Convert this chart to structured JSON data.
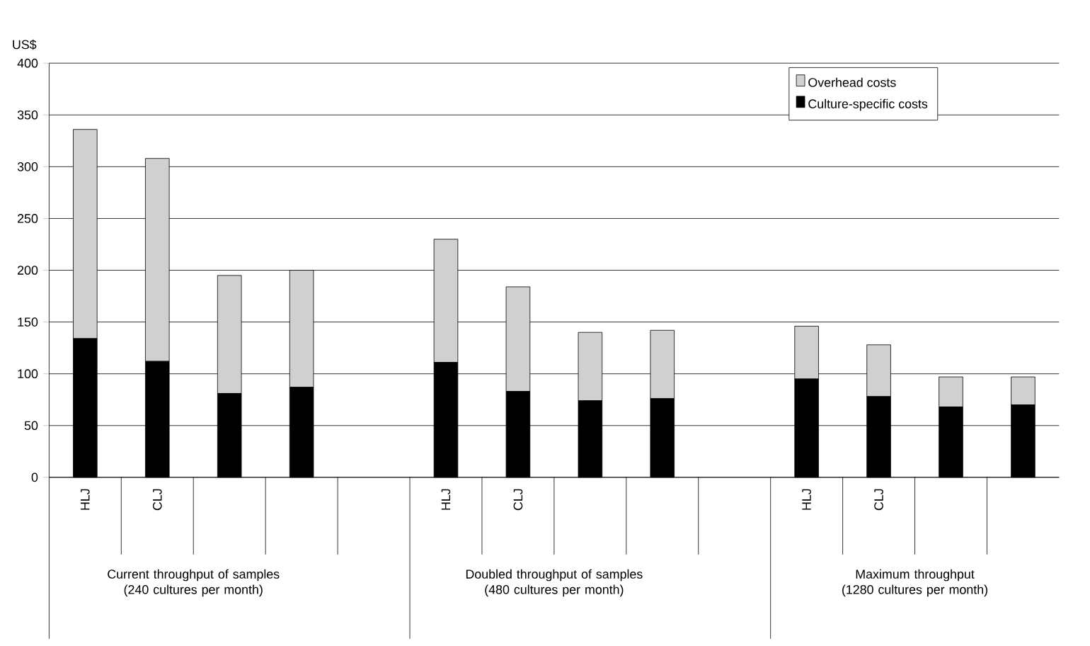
{
  "chart_data": {
    "type": "bar",
    "stacked": true,
    "ylabel": "US$",
    "categories": [
      "HLJ",
      "CLJ",
      null,
      null,
      null,
      "HLJ",
      "CLJ",
      null,
      null,
      null,
      "HLJ",
      "CLJ",
      null,
      null
    ],
    "series": [
      {
        "name": "Culture-specific costs",
        "color": "#000000",
        "values": [
          134,
          112,
          81,
          87,
          null,
          111,
          83,
          74,
          76,
          null,
          95,
          78,
          68,
          70
        ]
      },
      {
        "name": "Overhead costs",
        "color": "#d0d0d0",
        "values": [
          202,
          196,
          114,
          113,
          null,
          119,
          101,
          66,
          66,
          null,
          51,
          50,
          29,
          27
        ]
      }
    ],
    "ylim": [
      0,
      400
    ],
    "yticks": [
      0,
      50,
      100,
      150,
      200,
      250,
      300,
      350,
      400
    ],
    "grid": "y",
    "legend": "top right",
    "annotations": [
      "Current throughput of samples (240 cultures per month)",
      "Doubled throughput of samples (480 cultures per month)",
      "Maximum throughput (1280 cultures per month)"
    ]
  }
}
